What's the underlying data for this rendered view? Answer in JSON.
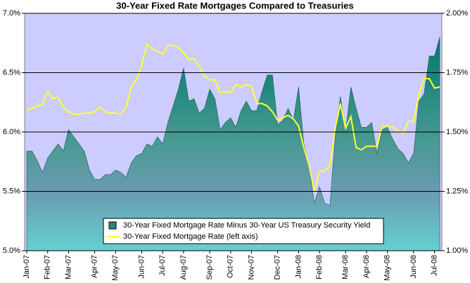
{
  "chart_data": {
    "type": "line",
    "title": "30-Year Fixed Rate Mortgages Compared to Treasuries",
    "categories": [
      "Jan-07",
      null,
      null,
      null,
      "Feb-07",
      null,
      null,
      null,
      "Mar-07",
      null,
      null,
      null,
      null,
      "Apr-07",
      null,
      null,
      null,
      "May-07",
      null,
      null,
      null,
      null,
      "Jun-07",
      null,
      null,
      null,
      "Jul-07",
      null,
      null,
      null,
      "Aug-07",
      null,
      null,
      null,
      null,
      "Sep-07",
      null,
      null,
      null,
      "Oct-07",
      null,
      null,
      null,
      "Nov-07",
      null,
      null,
      null,
      null,
      "Dec-07",
      null,
      null,
      null,
      "Jan-08",
      null,
      null,
      null,
      "Feb-08",
      null,
      null,
      null,
      null,
      "Mar-08",
      null,
      null,
      null,
      "Apr-08",
      null,
      null,
      null,
      "May-08",
      null,
      null,
      null,
      null,
      "Jun-08",
      null,
      null,
      null,
      "Jul-08",
      null
    ],
    "series": [
      {
        "name": "30-Year Fixed Mortgage Rate Minus 30-Year US Treasury Security Yield",
        "type": "area",
        "axis": "y2",
        "color": "#1f8a80",
        "values": [
          1.42,
          1.42,
          1.38,
          1.33,
          1.39,
          1.42,
          1.45,
          1.42,
          1.51,
          1.48,
          1.45,
          1.42,
          1.34,
          1.3,
          1.3,
          1.32,
          1.32,
          1.34,
          1.33,
          1.31,
          1.37,
          1.4,
          1.41,
          1.45,
          1.44,
          1.48,
          1.45,
          1.54,
          1.61,
          1.68,
          1.77,
          1.63,
          1.64,
          1.58,
          1.6,
          1.68,
          1.64,
          1.51,
          1.54,
          1.56,
          1.52,
          1.59,
          1.63,
          1.59,
          1.59,
          1.67,
          1.74,
          1.74,
          1.53,
          1.55,
          1.6,
          1.55,
          1.69,
          1.45,
          1.36,
          1.2,
          1.27,
          1.2,
          1.19,
          1.48,
          1.65,
          1.5,
          1.69,
          1.6,
          1.52,
          1.52,
          1.54,
          1.41,
          1.51,
          1.52,
          1.47,
          1.43,
          1.41,
          1.37,
          1.41,
          1.63,
          1.66,
          1.82,
          1.82,
          1.9
        ]
      },
      {
        "name": "30-Year Fixed Mortgage Rate (left axis)",
        "type": "line",
        "axis": "y",
        "color": "#ffff33",
        "values": [
          6.18,
          6.2,
          6.22,
          6.23,
          6.34,
          6.28,
          6.29,
          6.21,
          6.17,
          6.15,
          6.15,
          6.16,
          6.16,
          6.17,
          6.21,
          6.17,
          6.16,
          6.16,
          6.15,
          6.21,
          6.38,
          6.44,
          6.56,
          6.74,
          6.7,
          6.68,
          6.66,
          6.73,
          6.73,
          6.71,
          6.67,
          6.61,
          6.62,
          6.55,
          6.47,
          6.44,
          6.44,
          6.33,
          6.34,
          6.33,
          6.4,
          6.38,
          6.4,
          6.38,
          6.24,
          6.24,
          6.22,
          6.17,
          6.1,
          6.12,
          6.14,
          6.11,
          6.05,
          5.87,
          5.72,
          5.5,
          5.67,
          5.67,
          5.72,
          6.03,
          6.24,
          6.03,
          6.13,
          5.87,
          5.85,
          5.88,
          5.88,
          5.88,
          6.05,
          6.05,
          6.04,
          6.01,
          5.99,
          6.09,
          6.09,
          6.32,
          6.45,
          6.45,
          6.37,
          6.38
        ]
      }
    ],
    "ylim": [
      5.0,
      7.0
    ],
    "yticks": [
      {
        "value": 5.0,
        "label": "5.0%"
      },
      {
        "value": 5.5,
        "label": "5.5%"
      },
      {
        "value": 6.0,
        "label": "6.0%"
      },
      {
        "value": 6.5,
        "label": "6.5%"
      },
      {
        "value": 7.0,
        "label": "7.0%"
      }
    ],
    "y2lim": [
      1.0,
      2.0
    ],
    "y2ticks": [
      {
        "value": 1.0,
        "label": "1.00%"
      },
      {
        "value": 1.25,
        "label": "1.25%"
      },
      {
        "value": 1.5,
        "label": "1.50%"
      },
      {
        "value": 1.75,
        "label": "1.75%"
      },
      {
        "value": 2.0,
        "label": "2.00%"
      }
    ],
    "grid": true,
    "legend": "bottom"
  }
}
